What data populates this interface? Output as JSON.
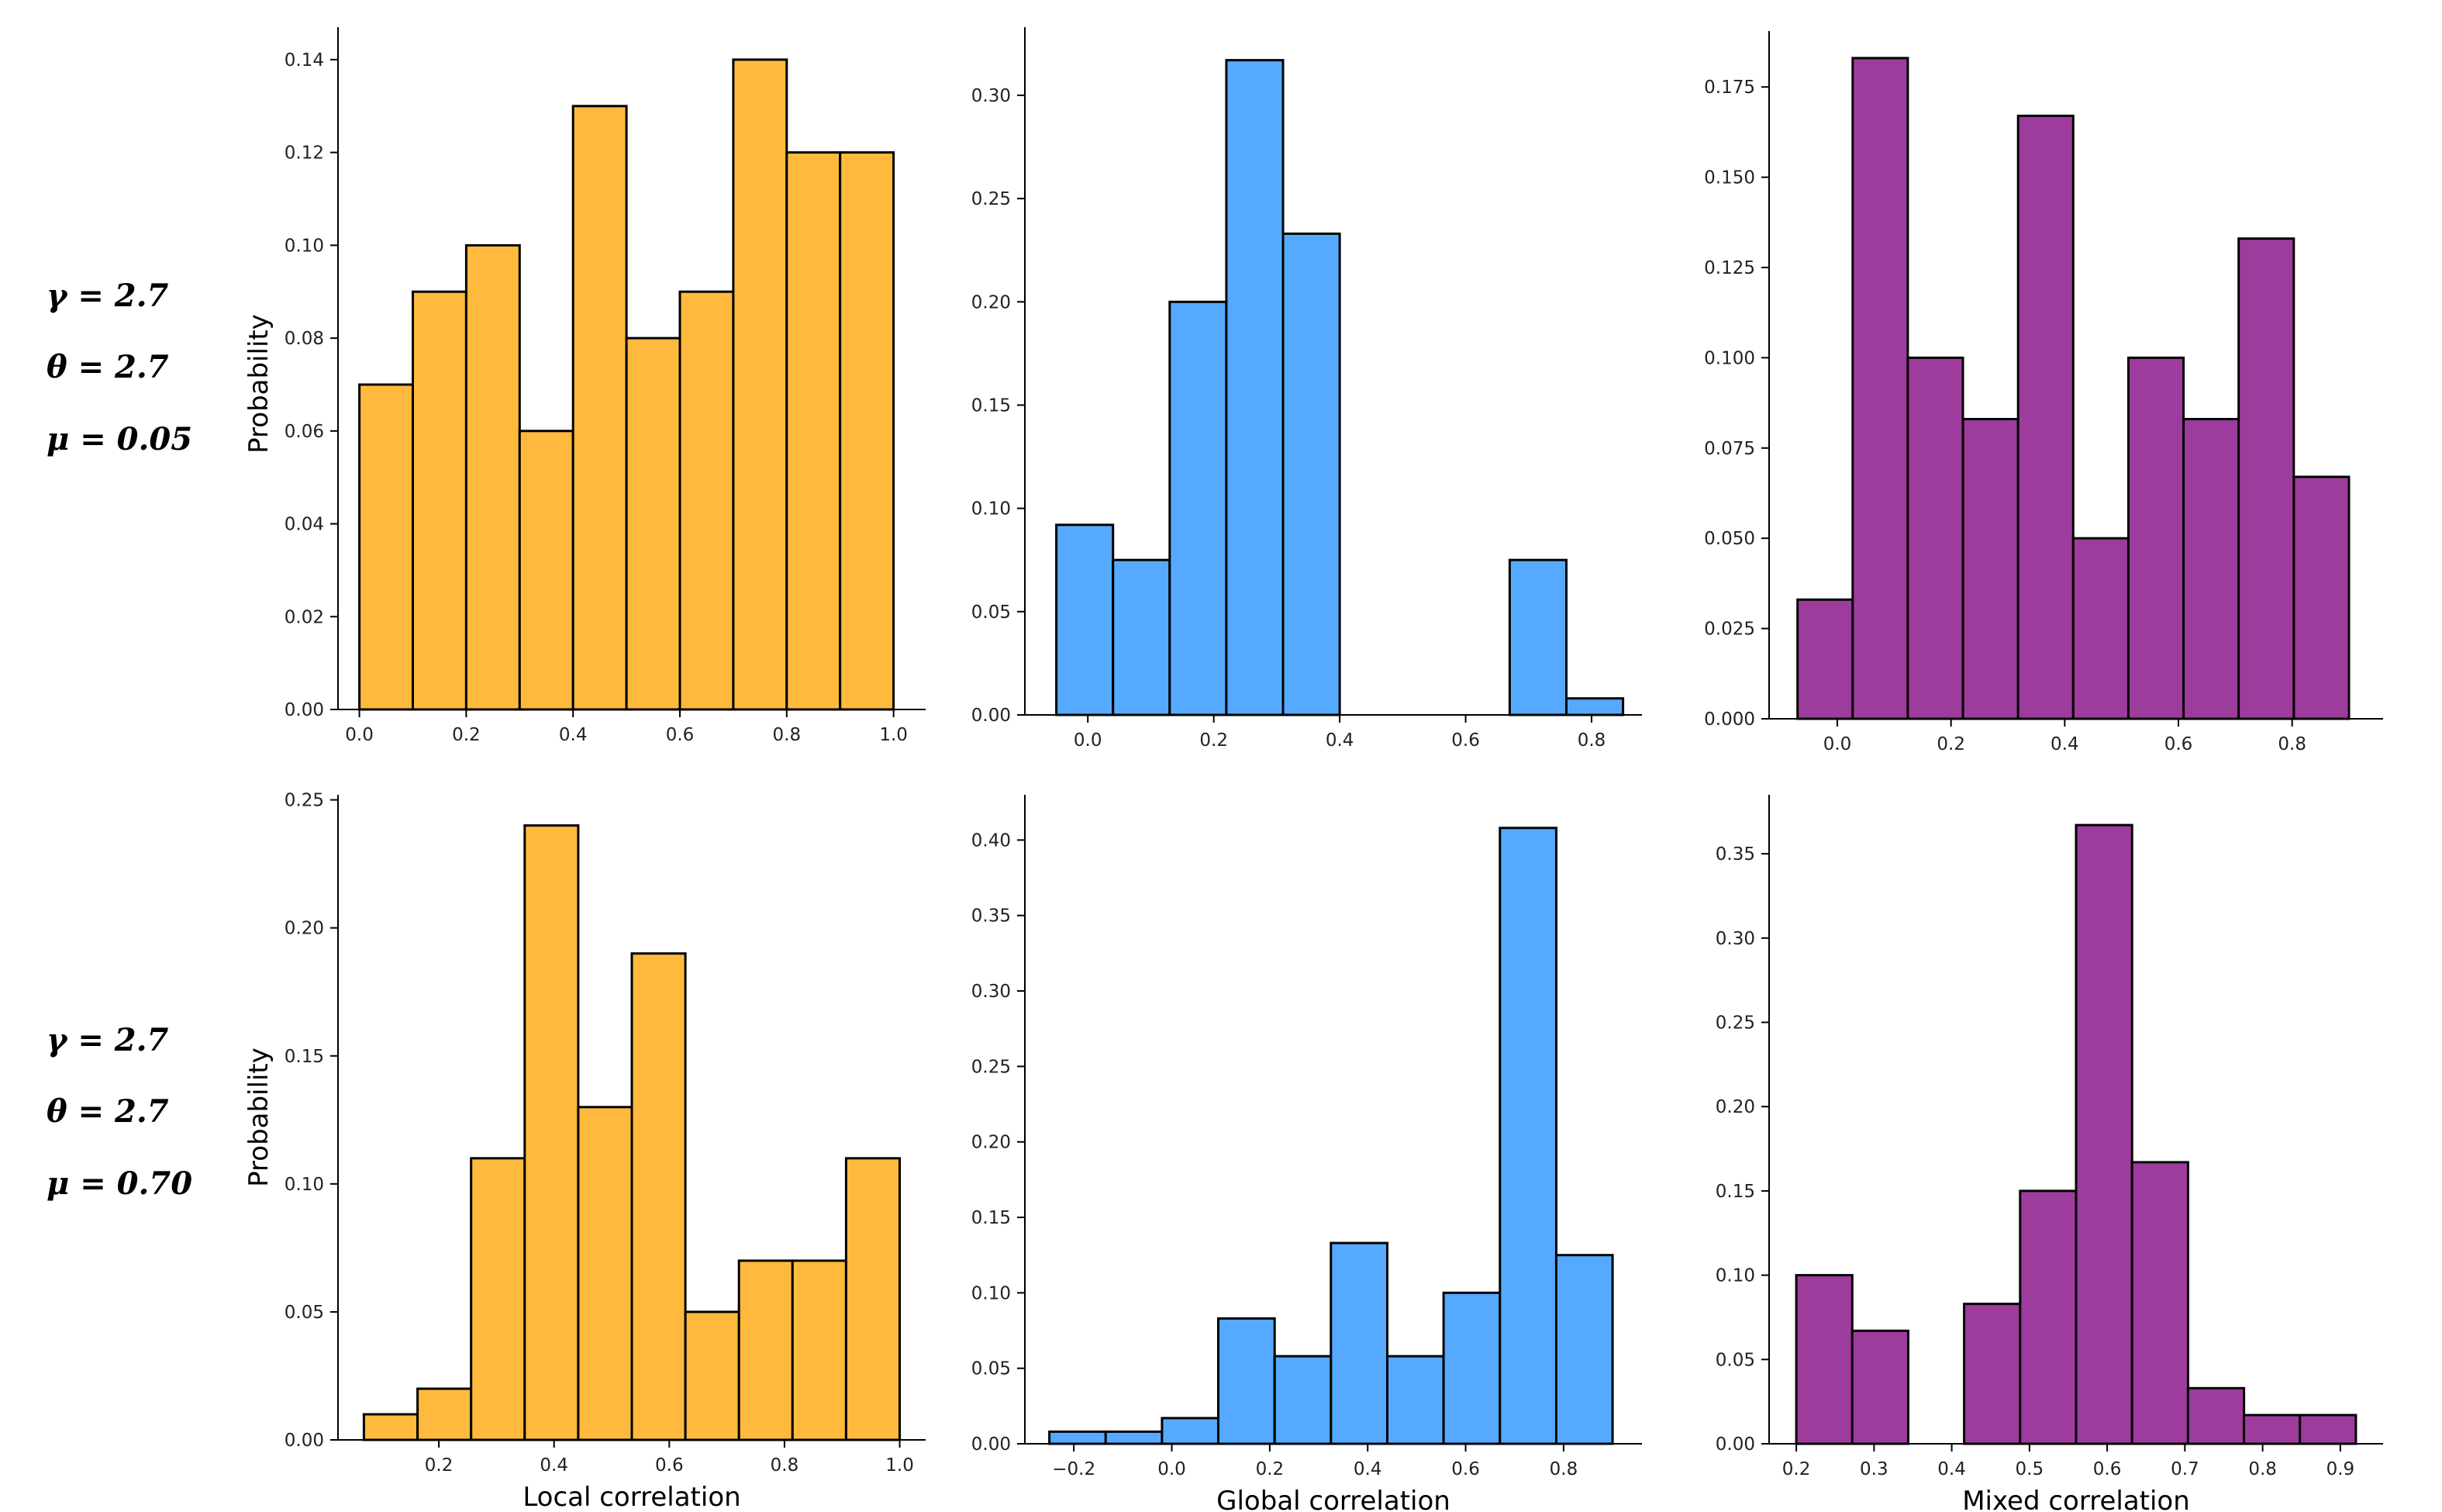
{
  "row_labels": [
    {
      "gamma": "γ = 2.7",
      "theta": "θ = 2.7",
      "mu": "μ = 0.05"
    },
    {
      "gamma": "γ = 2.7",
      "theta": "θ = 2.7",
      "mu": "μ = 0.70"
    }
  ],
  "colors": {
    "local": "#FFBA3E",
    "global": "#55AAFF",
    "mixed": "#9E3C9E",
    "edge": "#000000"
  },
  "chart_data": [
    {
      "type": "bar",
      "id": "local-mu005",
      "color_key": "local",
      "xlabel": "",
      "ylabel": "Probability",
      "bin_edges": [
        0.0,
        0.1,
        0.2,
        0.3,
        0.4,
        0.5,
        0.6,
        0.7,
        0.8,
        0.9,
        1.0
      ],
      "values": [
        0.07,
        0.09,
        0.1,
        0.06,
        0.13,
        0.08,
        0.09,
        0.14,
        0.12,
        0.12
      ],
      "xlim": [
        -0.04,
        1.06
      ],
      "ylim": [
        0,
        0.147
      ],
      "xticks": [
        0.0,
        0.2,
        0.4,
        0.6,
        0.8,
        1.0
      ],
      "xtick_labels": [
        "0.0",
        "0.2",
        "0.4",
        "0.6",
        "0.8",
        "1.0"
      ],
      "yticks": [
        0.0,
        0.02,
        0.04,
        0.06,
        0.08,
        0.1,
        0.12,
        0.14
      ],
      "ytick_labels": [
        "0.00",
        "0.02",
        "0.04",
        "0.06",
        "0.08",
        "0.10",
        "0.12",
        "0.14"
      ]
    },
    {
      "type": "bar",
      "id": "global-mu005",
      "color_key": "global",
      "xlabel": "",
      "ylabel": "",
      "bin_edges": [
        -0.05,
        0.04,
        0.13,
        0.22,
        0.31,
        0.4,
        0.49,
        0.58,
        0.67,
        0.76,
        0.85
      ],
      "values": [
        0.092,
        0.075,
        0.2,
        0.317,
        0.233,
        0.0,
        0.0,
        0.0,
        0.075,
        0.008
      ],
      "xlim": [
        -0.1,
        0.88
      ],
      "ylim": [
        0,
        0.333
      ],
      "xticks": [
        0.0,
        0.2,
        0.4,
        0.6,
        0.8
      ],
      "xtick_labels": [
        "0.0",
        "0.2",
        "0.4",
        "0.6",
        "0.8"
      ],
      "yticks": [
        0.0,
        0.05,
        0.1,
        0.15,
        0.2,
        0.25,
        0.3
      ],
      "ytick_labels": [
        "0.00",
        "0.05",
        "0.10",
        "0.15",
        "0.20",
        "0.25",
        "0.30"
      ]
    },
    {
      "type": "bar",
      "id": "mixed-mu005",
      "color_key": "mixed",
      "xlabel": "",
      "ylabel": "",
      "bin_edges": [
        -0.07,
        0.027,
        0.124,
        0.221,
        0.318,
        0.415,
        0.512,
        0.609,
        0.706,
        0.803,
        0.9
      ],
      "values": [
        0.033,
        0.183,
        0.1,
        0.083,
        0.167,
        0.05,
        0.1,
        0.083,
        0.133,
        0.067
      ],
      "xlim": [
        -0.12,
        0.96
      ],
      "ylim": [
        0,
        0.1905
      ],
      "xticks": [
        0.0,
        0.2,
        0.4,
        0.6,
        0.8
      ],
      "xtick_labels": [
        "0.0",
        "0.2",
        "0.4",
        "0.6",
        "0.8"
      ],
      "yticks": [
        0.0,
        0.025,
        0.05,
        0.075,
        0.1,
        0.125,
        0.15,
        0.175
      ],
      "ytick_labels": [
        "0.000",
        "0.025",
        "0.050",
        "0.075",
        "0.100",
        "0.125",
        "0.150",
        "0.175"
      ]
    },
    {
      "type": "bar",
      "id": "local-mu070",
      "color_key": "local",
      "xlabel": "Local correlation",
      "ylabel": "Probability",
      "bin_edges": [
        0.07,
        0.163,
        0.256,
        0.349,
        0.442,
        0.535,
        0.628,
        0.721,
        0.814,
        0.907,
        1.0
      ],
      "values": [
        0.01,
        0.02,
        0.11,
        0.24,
        0.13,
        0.19,
        0.05,
        0.07,
        0.07,
        0.11
      ],
      "xlim": [
        0.025,
        1.045
      ],
      "ylim": [
        0,
        0.252
      ],
      "xticks": [
        0.2,
        0.4,
        0.6,
        0.8,
        1.0
      ],
      "xtick_labels": [
        "0.2",
        "0.4",
        "0.6",
        "0.8",
        "1.0"
      ],
      "yticks": [
        0.0,
        0.05,
        0.1,
        0.15,
        0.2,
        0.25
      ],
      "ytick_labels": [
        "0.00",
        "0.05",
        "0.10",
        "0.15",
        "0.20",
        "0.25"
      ]
    },
    {
      "type": "bar",
      "id": "global-mu070",
      "color_key": "global",
      "xlabel": "Global correlation",
      "ylabel": "",
      "bin_edges": [
        -0.25,
        -0.135,
        -0.02,
        0.095,
        0.21,
        0.325,
        0.44,
        0.555,
        0.67,
        0.785,
        0.9
      ],
      "values": [
        0.008,
        0.008,
        0.017,
        0.083,
        0.058,
        0.133,
        0.058,
        0.1,
        0.408,
        0.125
      ],
      "xlim": [
        -0.3,
        0.96
      ],
      "ylim": [
        0,
        0.43
      ],
      "xticks": [
        -0.2,
        0.0,
        0.2,
        0.4,
        0.6,
        0.8
      ],
      "xtick_labels": [
        "−0.2",
        "0.0",
        "0.2",
        "0.4",
        "0.6",
        "0.8"
      ],
      "yticks": [
        0.0,
        0.05,
        0.1,
        0.15,
        0.2,
        0.25,
        0.3,
        0.35,
        0.4
      ],
      "ytick_labels": [
        "0.00",
        "0.05",
        "0.10",
        "0.15",
        "0.20",
        "0.25",
        "0.30",
        "0.35",
        "0.40"
      ]
    },
    {
      "type": "bar",
      "id": "mixed-mu070",
      "color_key": "mixed",
      "xlabel": "Mixed correlation",
      "ylabel": "",
      "bin_edges": [
        0.2,
        0.272,
        0.344,
        0.416,
        0.488,
        0.56,
        0.632,
        0.704,
        0.776,
        0.848,
        0.92
      ],
      "values": [
        0.1,
        0.067,
        0.0,
        0.083,
        0.15,
        0.367,
        0.167,
        0.033,
        0.017,
        0.017
      ],
      "xlim": [
        0.165,
        0.955
      ],
      "ylim": [
        0,
        0.385
      ],
      "xticks": [
        0.2,
        0.3,
        0.4,
        0.5,
        0.6,
        0.7,
        0.8,
        0.9
      ],
      "xtick_labels": [
        "0.2",
        "0.3",
        "0.4",
        "0.5",
        "0.6",
        "0.7",
        "0.8",
        "0.9"
      ],
      "yticks": [
        0.0,
        0.05,
        0.1,
        0.15,
        0.2,
        0.25,
        0.3,
        0.35
      ],
      "ytick_labels": [
        "0.00",
        "0.05",
        "0.10",
        "0.15",
        "0.20",
        "0.25",
        "0.30",
        "0.35"
      ]
    }
  ]
}
